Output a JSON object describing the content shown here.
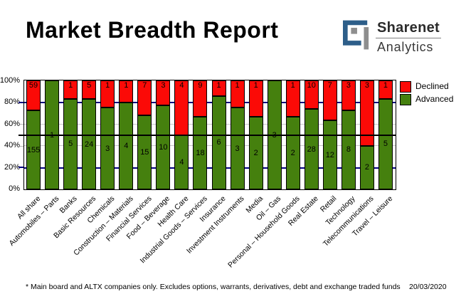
{
  "header": {
    "title": "Market Breadth Report",
    "logo": {
      "brand": "Sharenet",
      "sub": "Analytics",
      "blue": "#2d5e89",
      "gray": "#8e8e8e"
    }
  },
  "chart_data": {
    "type": "bar",
    "stacked": true,
    "stacking": "percent",
    "categories": [
      "All share",
      "Automobiles – Parts",
      "Banks",
      "Basic Resources",
      "Chemicals",
      "Construction – Materials",
      "Financial Services",
      "Food – Beverage",
      "Health Care",
      "Industrial Goods – Services",
      "Insurance",
      "Investment Instruments",
      "Media",
      "Oil – Gas",
      "Personal – Household Goods",
      "Real Estate",
      "Retail",
      "Technology",
      "Telecommunications",
      "Travel – Leisure"
    ],
    "series": [
      {
        "name": "Declined",
        "color": "#fb0a07",
        "values": [
          59,
          0,
          1,
          5,
          1,
          1,
          7,
          3,
          4,
          9,
          1,
          1,
          1,
          0,
          1,
          10,
          7,
          3,
          3,
          1
        ]
      },
      {
        "name": "Advanced",
        "color": "#45800e",
        "values": [
          155,
          1,
          5,
          24,
          3,
          4,
          15,
          10,
          4,
          18,
          6,
          3,
          2,
          3,
          2,
          28,
          12,
          8,
          2,
          5
        ]
      }
    ],
    "y_ticks": [
      "100%",
      "80%",
      "60%",
      "40%",
      "20%",
      "0%"
    ],
    "ylim": [
      0,
      100
    ],
    "grid": "horizontal",
    "gridline_navy_levels": [
      80,
      20
    ],
    "gridline_gray_levels": [
      60,
      40
    ],
    "reference_line_percent": 50,
    "legend_position": "top-right-outside",
    "colors": {
      "navy_grid": "#00007f",
      "gray_grid": "#c6c6c6",
      "reference_line": "#000000"
    }
  },
  "footer": {
    "note": "* Main board and ALTX companies only. Excludes options, warrants, derivatives, debt and exchange traded funds",
    "date": "20/03/2020"
  }
}
